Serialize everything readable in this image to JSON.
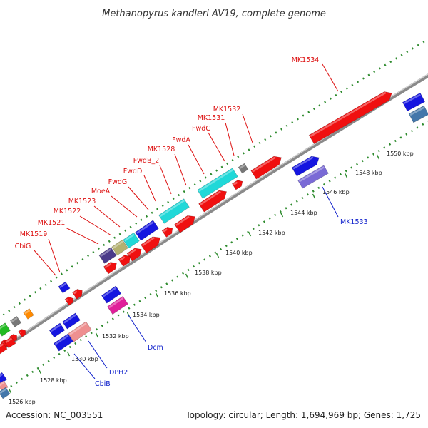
{
  "title": "Methanopyrus kandleri AV19, complete genome",
  "footer": {
    "accession": "Accession: NC_003551",
    "stats": "Topology: circular; Length: 1,694,969 bp; Genes: 1,725"
  },
  "colors": {
    "backbone": "#8a8a8a",
    "dots": "#2e8b2e",
    "label_forward": "#dd1111",
    "label_reverse": "#1122cc"
  },
  "ruler": {
    "unit": "kbp",
    "labels": [
      "1526 kbp",
      "1528 kbp",
      "1530 kbp",
      "1532 kbp",
      "1534 kbp",
      "1536 kbp",
      "1538 kbp",
      "1540 kbp",
      "1542 kbp",
      "1544 kbp",
      "1546 kbp",
      "1548 kbp",
      "1550 kbp"
    ]
  },
  "gene_labels": {
    "forward": [
      "MK1534",
      "MK1532",
      "MK1531",
      "FwdC",
      "FwdA",
      "MK1528",
      "FwdB_2",
      "FwdD",
      "FwdG",
      "MoeA",
      "MK1523",
      "MK1522",
      "MK1521",
      "MK1519",
      "CbiG"
    ],
    "reverse": [
      "MK1533",
      "Dcm",
      "DPH2",
      "CbiB"
    ]
  },
  "feature_colors": [
    "red",
    "cyan",
    "blue",
    "gray",
    "slate-blue",
    "olive",
    "dark-slate",
    "magenta",
    "pink",
    "green",
    "orange",
    "steel-blue"
  ]
}
